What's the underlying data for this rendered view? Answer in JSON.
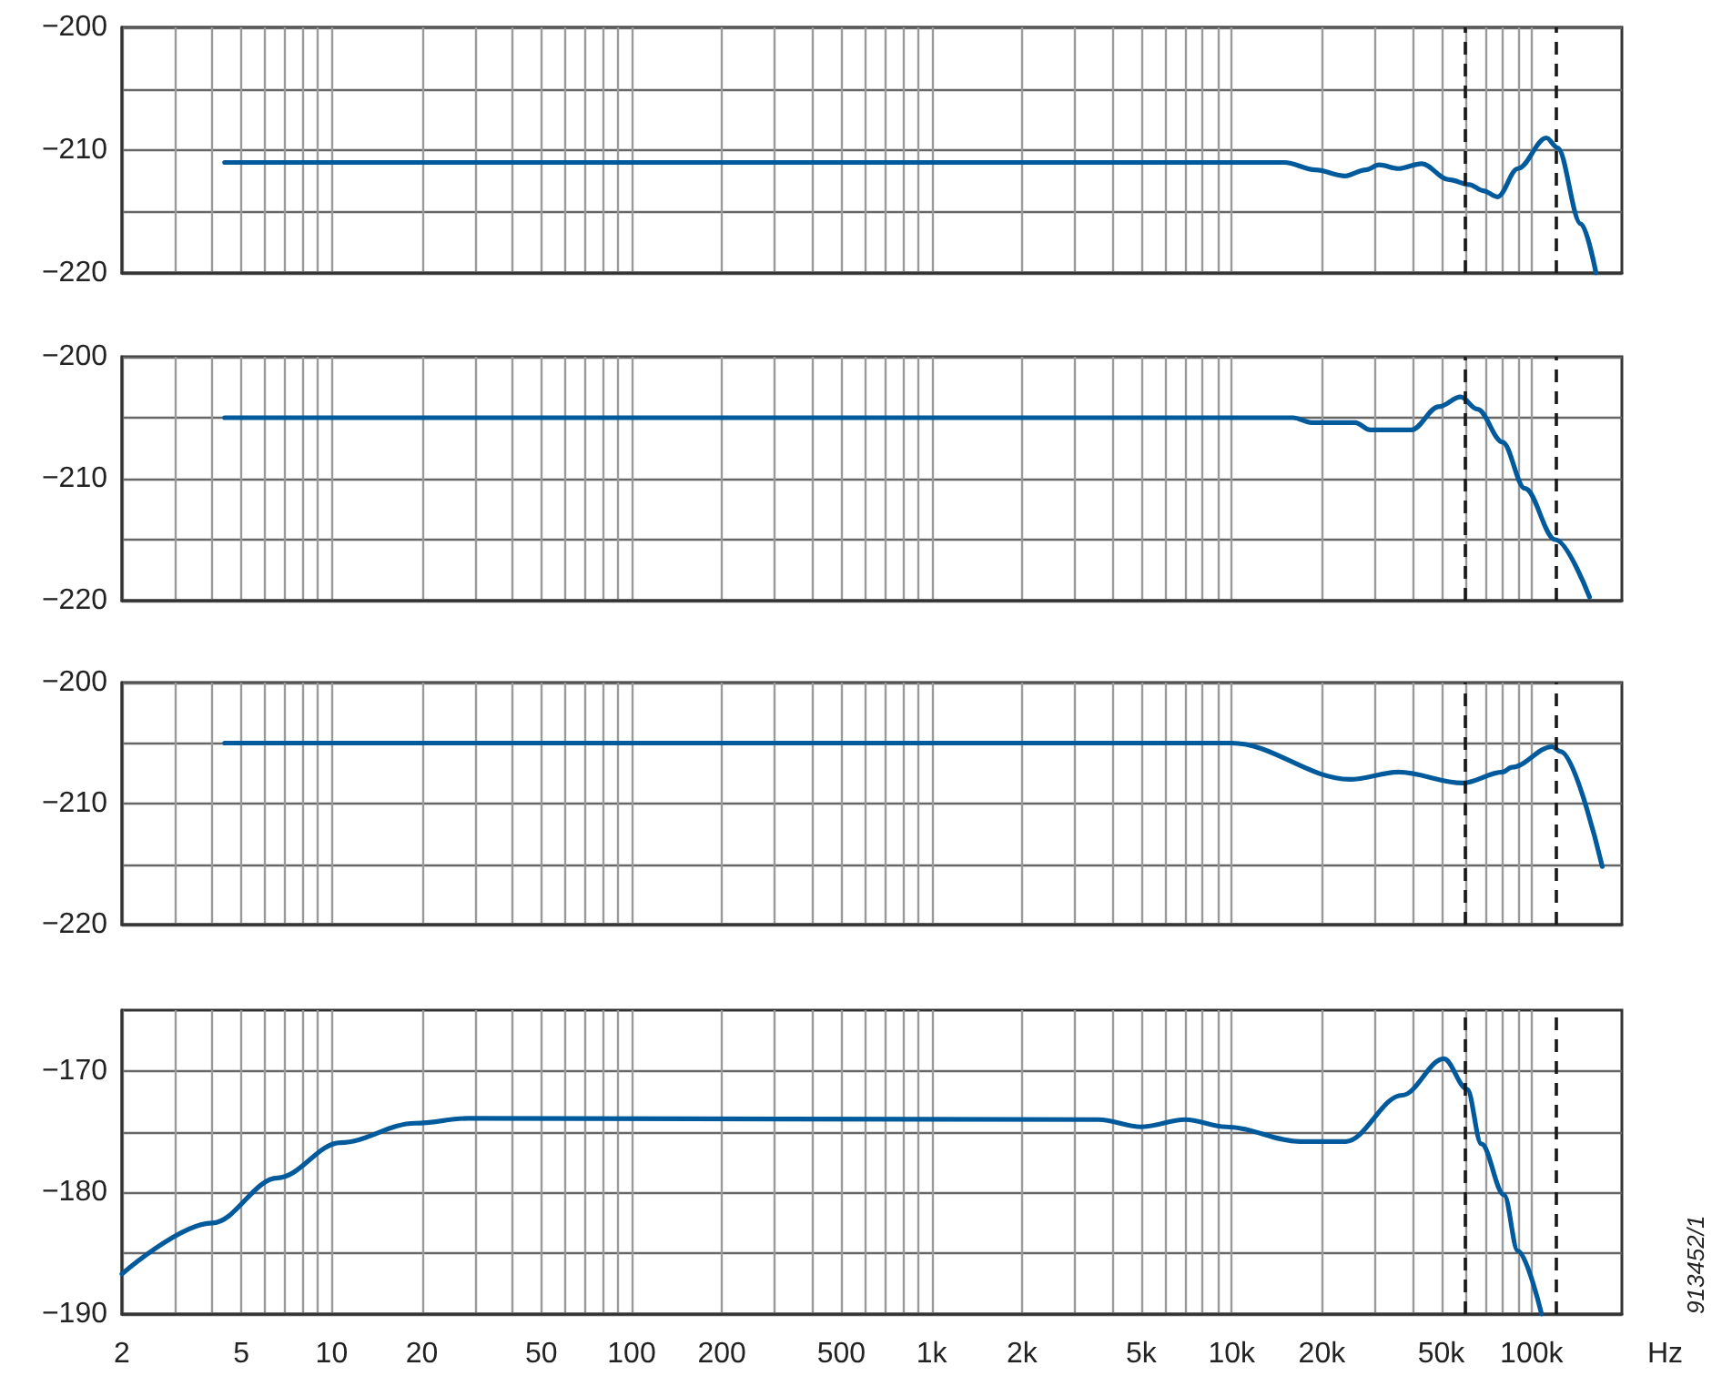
{
  "chart_data": [
    {
      "type": "line",
      "x": [
        4.4,
        15000,
        19000,
        23900,
        28000,
        31000,
        36000,
        43000,
        53000,
        62000,
        69000,
        77000,
        90000,
        112000,
        122000,
        146000,
        164000
      ],
      "series": [
        {
          "color": "#005a9c",
          "values": [
            -211,
            -211,
            -211.6,
            -212.1,
            -211.6,
            -211.2,
            -211.5,
            -211.1,
            -212.4,
            -212.8,
            -213.3,
            -213.8,
            -211.5,
            -209,
            -209.8,
            -216,
            -220
          ]
        }
      ],
      "log": "x",
      "xlim": [
        2,
        200000
      ],
      "ylim": [
        -220,
        -200
      ],
      "yticks": [
        -220,
        {
          "value": -215,
          "label": null
        },
        -210,
        {
          "value": -205,
          "label": null
        },
        -200
      ],
      "xticks": [
        2,
        3,
        4,
        5,
        6,
        7,
        8,
        9,
        10,
        20,
        30,
        40,
        50,
        60,
        70,
        80,
        90,
        100,
        200,
        300,
        400,
        500,
        600,
        700,
        800,
        900,
        1000,
        2000,
        3000,
        4000,
        5000,
        6000,
        7000,
        8000,
        9000,
        10000,
        20000,
        30000,
        40000,
        50000,
        60000,
        70000,
        80000,
        90000,
        100000
      ],
      "tick_labels": "y",
      "grid": true,
      "ref_lines": [
        {
          "axis": "x",
          "value": 60000,
          "color": "#1a1a1a",
          "line_style": "dashed"
        },
        {
          "axis": "x",
          "value": 120000,
          "color": "#1a1a1a",
          "line_style": "dashed"
        }
      ]
    },
    {
      "type": "line",
      "x": [
        4.4,
        16000,
        18500,
        25800,
        29000,
        39800,
        49000,
        58000,
        66000,
        80000,
        95000,
        120000,
        156000
      ],
      "series": [
        {
          "color": "#005a9c",
          "values": [
            -205,
            -205,
            -205.4,
            -205.4,
            -206,
            -206,
            -204.1,
            -203.3,
            -204.3,
            -207,
            -210.8,
            -215,
            -219.7
          ]
        }
      ],
      "log": "x",
      "xlim": [
        2,
        200000
      ],
      "ylim": [
        -220,
        -200
      ],
      "yticks": [
        -220,
        {
          "value": -215,
          "label": null
        },
        -210,
        {
          "value": -205,
          "label": null
        },
        -200
      ],
      "xticks": [
        2,
        3,
        4,
        5,
        6,
        7,
        8,
        9,
        10,
        20,
        30,
        40,
        50,
        60,
        70,
        80,
        90,
        100,
        200,
        300,
        400,
        500,
        600,
        700,
        800,
        900,
        1000,
        2000,
        3000,
        4000,
        5000,
        6000,
        7000,
        8000,
        9000,
        10000,
        20000,
        30000,
        40000,
        50000,
        60000,
        70000,
        80000,
        90000,
        100000
      ],
      "tick_labels": "y",
      "grid": true,
      "ref_lines": [
        {
          "axis": "x",
          "value": 60000,
          "color": "#1a1a1a",
          "line_style": "dashed"
        },
        {
          "axis": "x",
          "value": 120000,
          "color": "#1a1a1a",
          "line_style": "dashed"
        }
      ]
    },
    {
      "type": "line",
      "x": [
        4.4,
        10000,
        24800,
        36000,
        59000,
        80000,
        86000,
        117000,
        125000,
        172000
      ],
      "series": [
        {
          "color": "#005a9c",
          "values": [
            -205,
            -205,
            -208,
            -207.4,
            -208.3,
            -207.4,
            -207,
            -205.3,
            -205.7,
            -215.2
          ]
        }
      ],
      "log": "x",
      "xlim": [
        2,
        200000
      ],
      "ylim": [
        -220,
        -200
      ],
      "yticks": [
        -220,
        {
          "value": -215,
          "label": null
        },
        -210,
        {
          "value": -205,
          "label": null
        },
        -200
      ],
      "xticks": [
        2,
        3,
        4,
        5,
        6,
        7,
        8,
        9,
        10,
        20,
        30,
        40,
        50,
        60,
        70,
        80,
        90,
        100,
        200,
        300,
        400,
        500,
        600,
        700,
        800,
        900,
        1000,
        2000,
        3000,
        4000,
        5000,
        6000,
        7000,
        8000,
        9000,
        10000,
        20000,
        30000,
        40000,
        50000,
        60000,
        70000,
        80000,
        90000,
        100000
      ],
      "tick_labels": "y",
      "grid": true,
      "ref_lines": [
        {
          "axis": "x",
          "value": 60000,
          "color": "#1a1a1a",
          "line_style": "dashed"
        },
        {
          "axis": "x",
          "value": 120000,
          "color": "#1a1a1a",
          "line_style": "dashed"
        }
      ]
    },
    {
      "type": "line",
      "x": [
        2,
        4,
        6.6,
        10.7,
        19,
        28.5,
        3600,
        5000,
        7000,
        9600,
        16900,
        24000,
        37000,
        51000,
        61000,
        68000,
        81000,
        90000,
        108000
      ],
      "series": [
        {
          "color": "#005a9c",
          "values": [
            -186.7,
            -182.5,
            -178.8,
            -175.9,
            -174.3,
            -173.9,
            -174,
            -174.6,
            -174,
            -174.6,
            -175.8,
            -175.8,
            -172,
            -169,
            -171.5,
            -176,
            -180.2,
            -184.8,
            -190
          ]
        }
      ],
      "log": "x",
      "xlim": [
        2,
        200000
      ],
      "ylim": [
        -190,
        -165
      ],
      "yticks": [
        -190,
        {
          "value": -185,
          "label": null
        },
        -180,
        {
          "value": -175,
          "label": null
        },
        -170
      ],
      "xticks": [
        2,
        {
          "value": 3,
          "label": null
        },
        {
          "value": 4,
          "label": null
        },
        5,
        {
          "value": 6,
          "label": null
        },
        {
          "value": 7,
          "label": null
        },
        {
          "value": 8,
          "label": null
        },
        {
          "value": 9,
          "label": null
        },
        10,
        20,
        {
          "value": 30,
          "label": null
        },
        {
          "value": 40,
          "label": null
        },
        50,
        {
          "value": 60,
          "label": null
        },
        {
          "value": 70,
          "label": null
        },
        {
          "value": 80,
          "label": null
        },
        {
          "value": 90,
          "label": null
        },
        100,
        200,
        {
          "value": 300,
          "label": null
        },
        {
          "value": 400,
          "label": null
        },
        500,
        {
          "value": 600,
          "label": null
        },
        {
          "value": 700,
          "label": null
        },
        {
          "value": 800,
          "label": null
        },
        {
          "value": 900,
          "label": null
        },
        {
          "value": 1000,
          "label": "1k"
        },
        {
          "value": 2000,
          "label": "2k"
        },
        {
          "value": 3000,
          "label": null
        },
        {
          "value": 4000,
          "label": null
        },
        {
          "value": 5000,
          "label": "5k"
        },
        {
          "value": 6000,
          "label": null
        },
        {
          "value": 7000,
          "label": null
        },
        {
          "value": 8000,
          "label": null
        },
        {
          "value": 9000,
          "label": null
        },
        {
          "value": 10000,
          "label": "10k"
        },
        {
          "value": 20000,
          "label": "20k"
        },
        {
          "value": 30000,
          "label": null
        },
        {
          "value": 40000,
          "label": null
        },
        {
          "value": 50000,
          "label": "50k"
        },
        {
          "value": 60000,
          "label": null
        },
        {
          "value": 70000,
          "label": null
        },
        {
          "value": 80000,
          "label": null
        },
        {
          "value": 90000,
          "label": null
        },
        {
          "value": 100000,
          "label": "100k"
        }
      ],
      "xlabel": "Hz",
      "grid": true,
      "annotations": [
        "913452/1"
      ],
      "ref_lines": [
        {
          "axis": "x",
          "value": 60000,
          "color": "#1a1a1a",
          "line_style": "dashed"
        },
        {
          "axis": "x",
          "value": 120000,
          "color": "#1a1a1a",
          "line_style": "dashed"
        }
      ]
    }
  ]
}
